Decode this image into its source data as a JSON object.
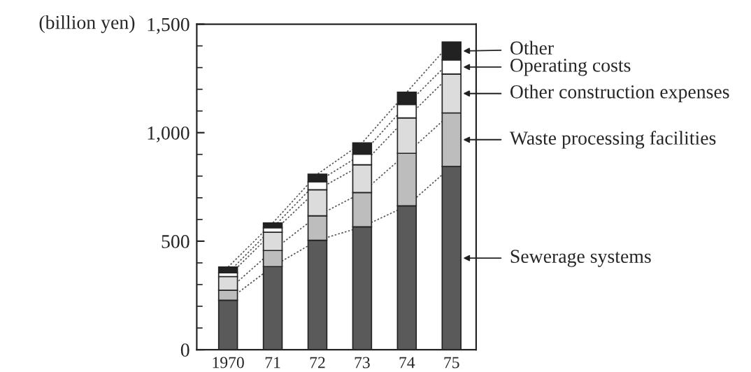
{
  "chart_data": {
    "type": "bar",
    "stacked": true,
    "ylabel": "(billion yen)",
    "categories": [
      "1970",
      "71",
      "72",
      "73",
      "74",
      "75"
    ],
    "series": [
      {
        "name": "Sewerage systems",
        "color": "#5a5a5a",
        "values": [
          228,
          383,
          504,
          566,
          663,
          844
        ]
      },
      {
        "name": "Waste processing facilities",
        "color": "#bdbdbd",
        "values": [
          46,
          74,
          113,
          158,
          242,
          247
        ]
      },
      {
        "name": "Other construction expenses",
        "color": "#dcdcdc",
        "values": [
          63,
          84,
          120,
          128,
          163,
          179
        ]
      },
      {
        "name": "Operating costs",
        "color": "#ffffff",
        "values": [
          17,
          21,
          37,
          49,
          62,
          65
        ]
      },
      {
        "name": "Other",
        "color": "#222222",
        "values": [
          27,
          22,
          35,
          52,
          57,
          83
        ]
      }
    ],
    "ylim": [
      0,
      1500
    ],
    "yticks": [
      0,
      500,
      {
        "value": 1000,
        "label": "1,000"
      },
      {
        "value": 1500,
        "label": "1,500"
      }
    ],
    "grid": false,
    "legend": "right"
  }
}
